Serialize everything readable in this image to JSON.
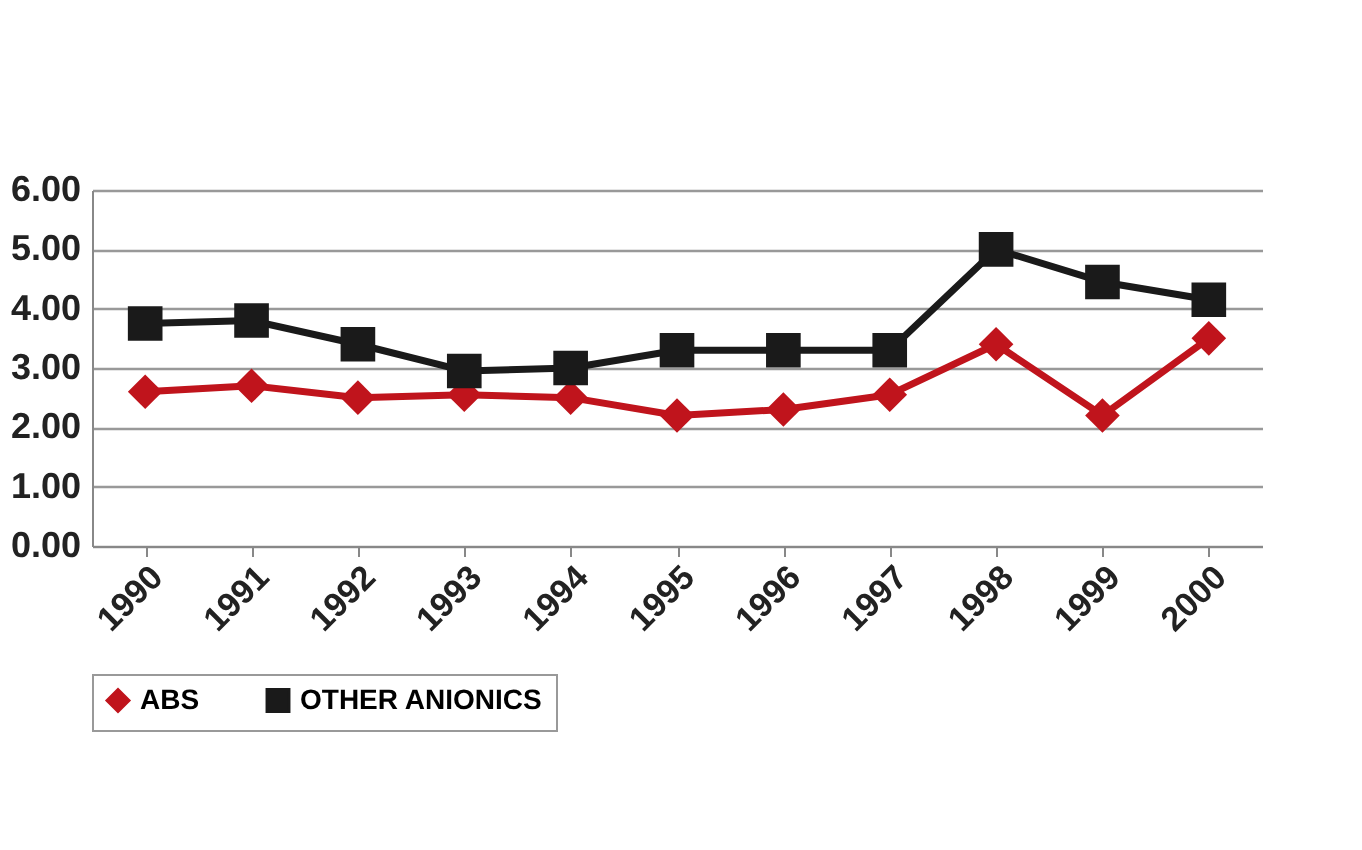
{
  "chart_data": {
    "type": "line",
    "categories": [
      "1990",
      "1991",
      "1992",
      "1993",
      "1994",
      "1995",
      "1996",
      "1997",
      "1998",
      "1999",
      "2000"
    ],
    "series": [
      {
        "name": "ABS",
        "color": "#c0141c",
        "marker": "diamond",
        "values": [
          2.6,
          2.7,
          2.5,
          2.55,
          2.5,
          2.2,
          2.3,
          2.55,
          3.4,
          2.2,
          3.5
        ]
      },
      {
        "name": "OTHER ANIONICS",
        "color": "#1a1a1a",
        "marker": "square",
        "values": [
          3.75,
          3.8,
          3.4,
          2.95,
          3.0,
          3.3,
          3.3,
          3.3,
          5.0,
          4.45,
          4.15
        ]
      }
    ],
    "ylim": [
      0,
      6
    ],
    "yticks": [
      {
        "value": 0,
        "label": "0.00"
      },
      {
        "value": 1,
        "label": "1.00"
      },
      {
        "value": 2,
        "label": "2.00"
      },
      {
        "value": 3,
        "label": "3.00"
      },
      {
        "value": 4,
        "label": "4.00"
      },
      {
        "value": 5,
        "label": "5.00"
      },
      {
        "value": 6,
        "label": "6.00"
      }
    ],
    "grid": "y",
    "legend": "bottom",
    "line_style": "solid"
  }
}
